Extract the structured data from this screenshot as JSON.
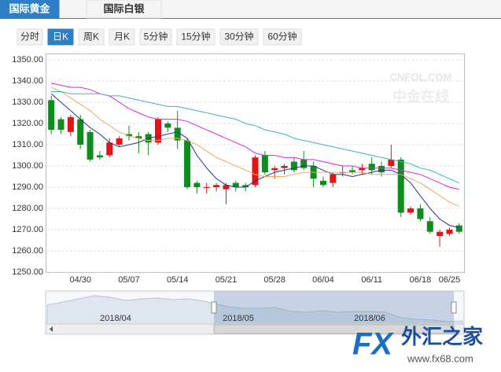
{
  "tabs": [
    {
      "label": "国际黄金",
      "active": true
    },
    {
      "label": "国际白银",
      "active": false
    }
  ],
  "periods": [
    {
      "label": "分时",
      "active": false
    },
    {
      "label": "日K",
      "active": true
    },
    {
      "label": "周K",
      "active": false
    },
    {
      "label": "月K",
      "active": false
    },
    {
      "label": "5分钟",
      "active": false
    },
    {
      "label": "15分钟",
      "active": false
    },
    {
      "label": "30分钟",
      "active": false
    },
    {
      "label": "60分钟",
      "active": false
    }
  ],
  "watermarks": {
    "cnfol": "CNFOL.COM",
    "cnfol_cn": "中金在线",
    "fx": "FX",
    "fx_cn": "外汇之家",
    "fx_url": "www.fx68.com"
  },
  "navigator": {
    "labels": [
      "2018/04",
      "2018/05",
      "2018/06"
    ]
  },
  "chart_data": {
    "type": "candlestick",
    "categories": [
      null,
      null,
      null,
      "04/30",
      null,
      null,
      null,
      null,
      "05/07",
      null,
      null,
      null,
      null,
      "05/14",
      null,
      null,
      null,
      null,
      "05/21",
      null,
      null,
      null,
      null,
      "05/28",
      null,
      null,
      null,
      null,
      "06/04",
      null,
      null,
      null,
      null,
      "06/11",
      null,
      null,
      null,
      null,
      "06/18",
      null,
      null,
      "06/25",
      null
    ],
    "open": [
      1331,
      1322,
      1316,
      1322,
      1316,
      1305,
      1305,
      1310,
      1315,
      1314,
      1315,
      1311,
      1320,
      1318,
      1312,
      1292,
      1290,
      1290,
      1289,
      1292,
      1291,
      1291,
      1305,
      1298,
      1299,
      1302,
      1303,
      1300,
      1293,
      1292,
      1297,
      1298,
      1298,
      1301,
      1300,
      1300,
      1303,
      1278,
      1280,
      1274,
      1267,
      1268,
      1272
    ],
    "high": [
      1333,
      1323,
      1324,
      1324,
      1317,
      1307,
      1313,
      1314,
      1319,
      1316,
      1316,
      1323,
      1321,
      1326,
      1313,
      1293,
      1292,
      1292,
      1292,
      1293,
      1292,
      1305,
      1307,
      1300,
      1301,
      1304,
      1307,
      1302,
      1295,
      1297,
      1300,
      1300,
      1301,
      1304,
      1302,
      1310,
      1304,
      1281,
      1282,
      1276,
      1270,
      1271,
      1273
    ],
    "low": [
      1315,
      1315,
      1314,
      1308,
      1302,
      1303,
      1304,
      1309,
      1312,
      1306,
      1305,
      1310,
      1316,
      1308,
      1289,
      1287,
      1287,
      1288,
      1282,
      1288,
      1288,
      1290,
      1296,
      1294,
      1296,
      1297,
      1298,
      1290,
      1290,
      1290,
      1295,
      1296,
      1296,
      1296,
      1295,
      1299,
      1276,
      1277,
      1274,
      1268,
      1262,
      1267,
      1268
    ],
    "close": [
      1317,
      1317,
      1323,
      1310,
      1303,
      1304,
      1311,
      1313,
      1314,
      1313,
      1311,
      1322,
      1318,
      1312,
      1290,
      1290,
      1290,
      1291,
      1291,
      1290,
      1290,
      1304,
      1297,
      1299,
      1300,
      1298,
      1299,
      1294,
      1291,
      1296,
      1297,
      1297,
      1299,
      1298,
      1297,
      1303,
      1278,
      1280,
      1275,
      1269,
      1269,
      1270,
      1269
    ],
    "up_color": "#e41414",
    "down_color": "#0f8c1e",
    "lines": [
      {
        "color": "#27348b",
        "values": [
          1334,
          1330,
          1326,
          1322,
          1318,
          1315,
          1311,
          1309,
          1310,
          1311,
          1313,
          1314,
          1315,
          1316,
          1313,
          1305,
          1299,
          1294,
          1291,
          1290,
          1290,
          1293,
          1295,
          1297,
          1298,
          1299,
          1300,
          1300,
          1298,
          1296,
          1296,
          1295,
          1296,
          1297,
          1298,
          1298,
          1296,
          1292,
          1286,
          1280,
          1275,
          1272,
          1271
        ]
      },
      {
        "color": "#f0a868",
        "values": [
          1337,
          1335,
          1332,
          1329,
          1326,
          1322,
          1319,
          1316,
          1314,
          1313,
          1312,
          1312,
          1313,
          1313,
          1312,
          1310,
          1307,
          1304,
          1302,
          1300,
          1298,
          1296,
          1295,
          1295,
          1295,
          1296,
          1297,
          1297,
          1297,
          1297,
          1297,
          1297,
          1297,
          1296,
          1296,
          1296,
          1296,
          1294,
          1292,
          1289,
          1286,
          1283,
          1281
        ]
      },
      {
        "color": "#e024d8",
        "values": [
          1339,
          1338,
          1337,
          1337,
          1336,
          1334,
          1333,
          1330,
          1327,
          1325,
          1323,
          1322,
          1322,
          1322,
          1321,
          1319,
          1317,
          1315,
          1313,
          1311,
          1309,
          1306,
          1305,
          1305,
          1304,
          1304,
          1303,
          1303,
          1302,
          1301,
          1300,
          1300,
          1299,
          1299,
          1299,
          1299,
          1298,
          1297,
          1296,
          1294,
          1292,
          1290,
          1289
        ]
      },
      {
        "color": "#3fb2c2",
        "values": [
          1335,
          1335,
          1334,
          1334,
          1334,
          1334,
          1333,
          1333,
          1332,
          1331,
          1330,
          1329,
          1328,
          1328,
          1327,
          1326,
          1325,
          1324,
          1323,
          1322,
          1320,
          1319,
          1317,
          1316,
          1315,
          1313,
          1312,
          1311,
          1310,
          1309,
          1308,
          1307,
          1306,
          1305,
          1304,
          1303,
          1302,
          1301,
          1299,
          1298,
          1296,
          1294,
          1292
        ]
      }
    ],
    "ylim": [
      1250,
      1350
    ],
    "yticks": [
      {
        "value": 1250,
        "label": "1250.00"
      },
      {
        "value": 1260,
        "label": "1260.00"
      },
      {
        "value": 1270,
        "label": "1270.00"
      },
      {
        "value": 1280,
        "label": "1280.00"
      },
      {
        "value": 1290,
        "label": "1290.00"
      },
      {
        "value": 1300,
        "label": "1300.00"
      },
      {
        "value": 1310,
        "label": "1310.00"
      },
      {
        "value": 1320,
        "label": "1320.00"
      },
      {
        "value": 1330,
        "label": "1330.00"
      },
      {
        "value": 1340,
        "label": "1340.00"
      },
      {
        "value": 1350,
        "label": "1350.00"
      }
    ],
    "grid": true
  }
}
